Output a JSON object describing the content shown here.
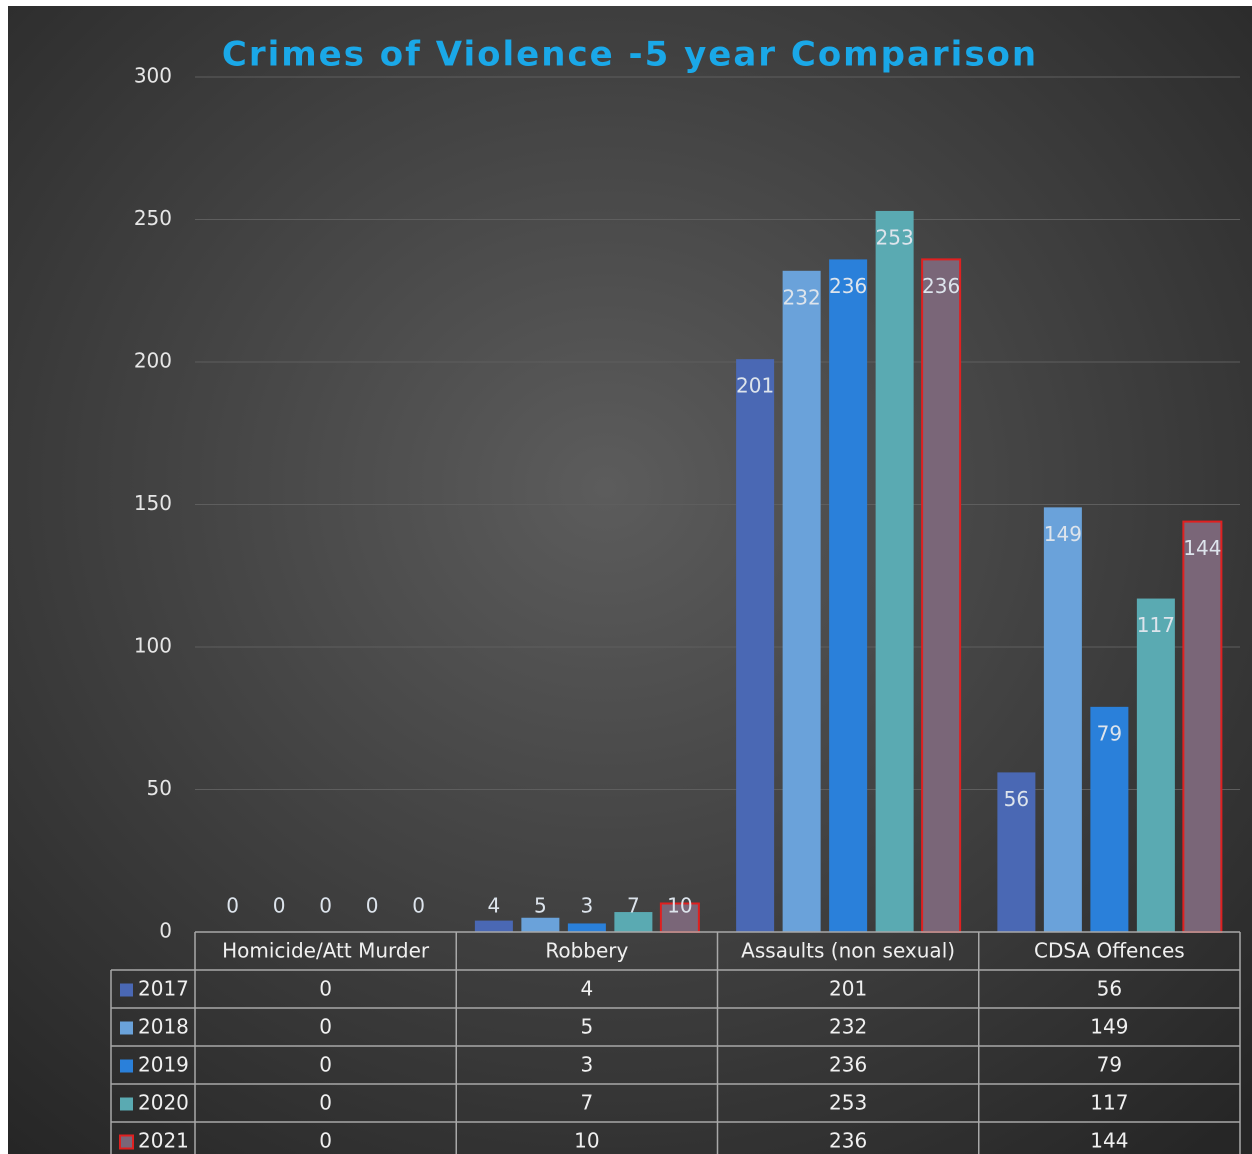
{
  "chart_data": {
    "type": "bar",
    "title": "Crimes of Violence -5 year Comparison",
    "categories": [
      "Homicide/Att Murder",
      "Robbery",
      "Assaults (non sexual)",
      "CDSA Offences"
    ],
    "series": [
      {
        "name": "2017",
        "color": "#4a68b4",
        "values": [
          0,
          4,
          201,
          56
        ]
      },
      {
        "name": "2018",
        "color": "#6aa2da",
        "values": [
          0,
          5,
          232,
          149
        ]
      },
      {
        "name": "2019",
        "color": "#2a80da",
        "values": [
          0,
          3,
          236,
          79
        ]
      },
      {
        "name": "2020",
        "color": "#5aaab2",
        "values": [
          0,
          7,
          253,
          117
        ]
      },
      {
        "name": "2021",
        "color": "#7a6678",
        "edgecolor": "#e02020",
        "values": [
          0,
          10,
          236,
          144
        ]
      }
    ],
    "ylim": [
      0,
      300
    ],
    "yticks": [
      0,
      50,
      100,
      150,
      200,
      250,
      300
    ],
    "grid": true,
    "data_labels": true,
    "data_table": true
  }
}
